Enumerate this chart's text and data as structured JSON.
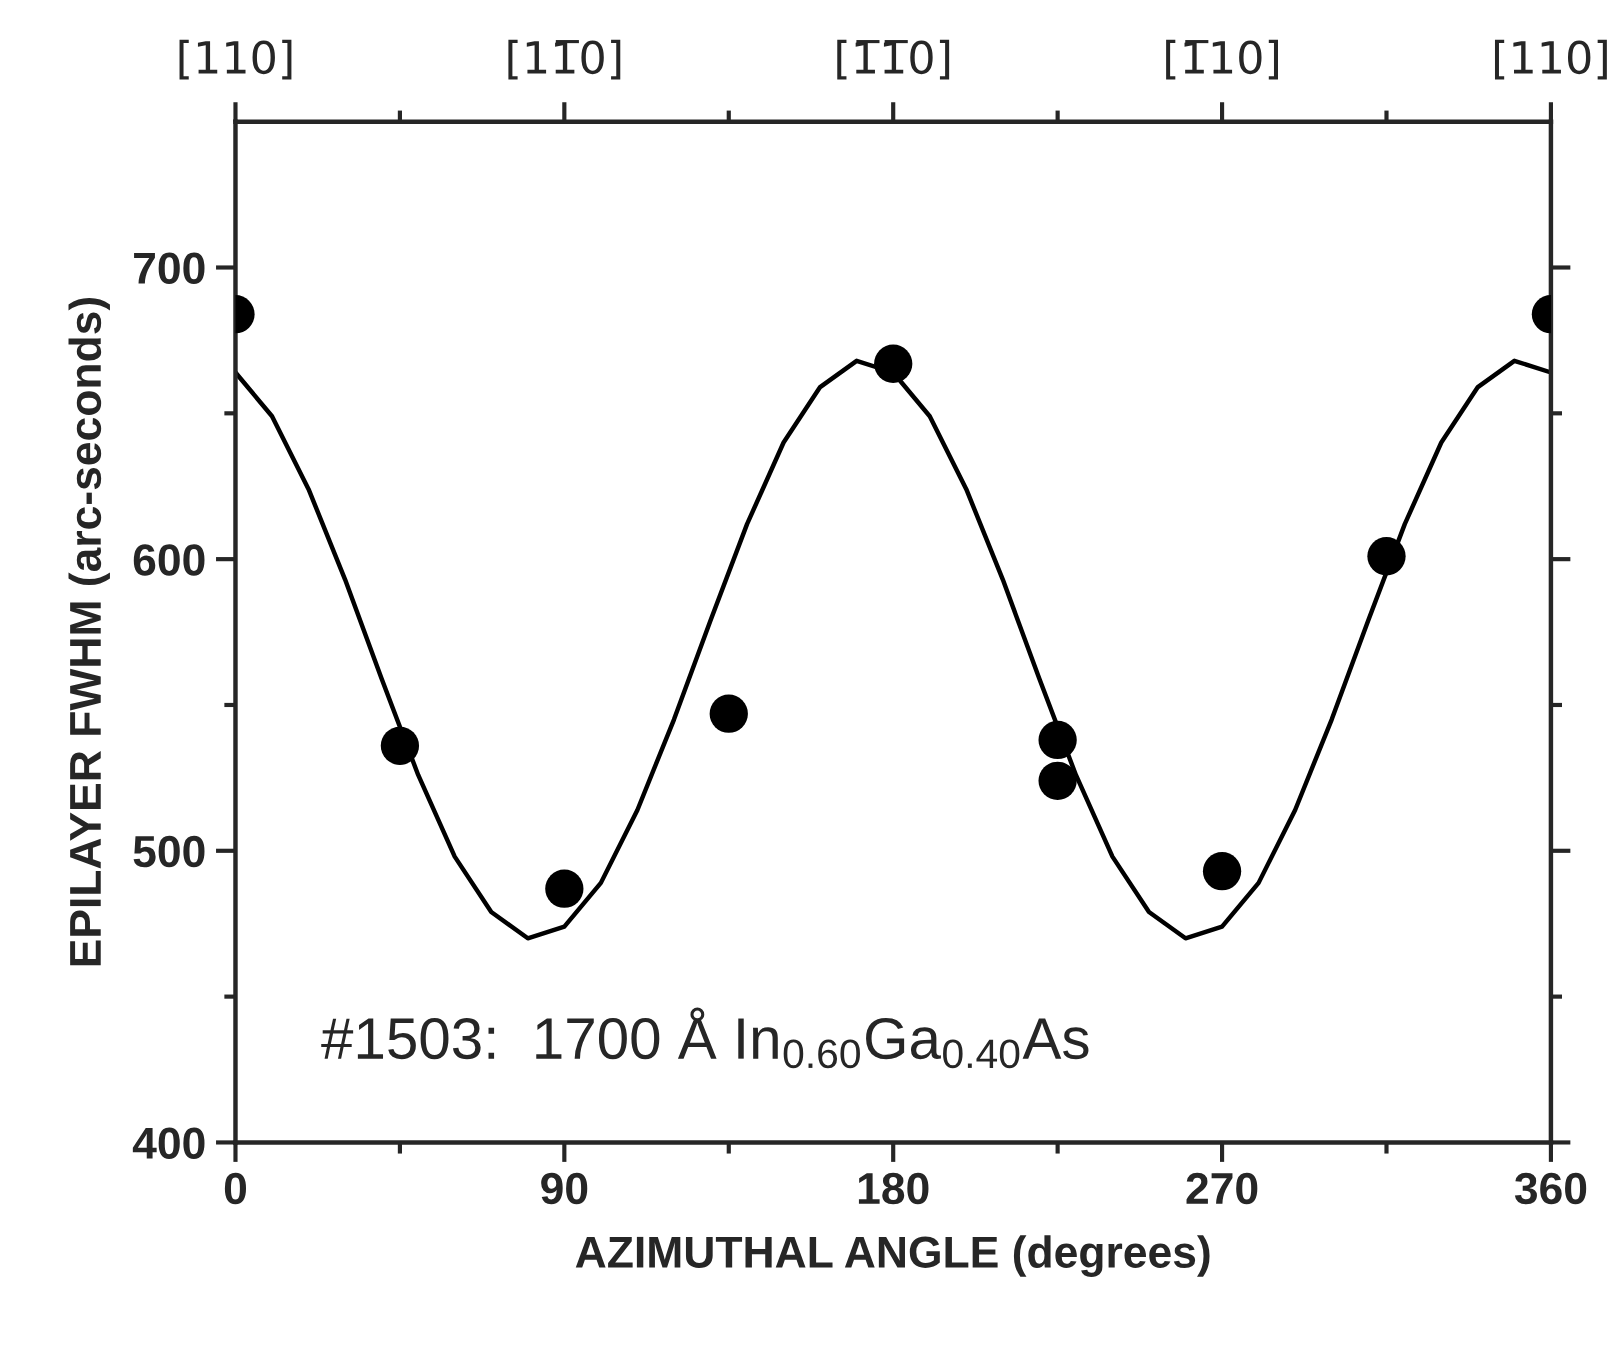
{
  "chart_data": {
    "type": "scatter",
    "xlabel": "AZIMUTHAL ANGLE (degrees)",
    "ylabel": "EPILAYER FWHM (arc-seconds)",
    "xlim": [
      0,
      360
    ],
    "xticks": [
      0,
      {
        "value": 45,
        "label": null
      },
      90,
      {
        "value": 135,
        "label": null
      },
      180,
      {
        "value": 225,
        "label": null
      },
      270,
      {
        "value": 315,
        "label": null
      },
      360
    ],
    "ylim": [
      400,
      750
    ],
    "yticks": [
      400,
      {
        "value": 450,
        "label": null
      },
      500,
      {
        "value": 550,
        "label": null
      },
      600,
      {
        "value": 650,
        "label": null
      },
      700
    ],
    "marker": "circle",
    "grid": false,
    "series": [
      {
        "color": "#000000",
        "x": [
          0,
          45,
          90,
          135,
          180,
          225,
          225,
          270,
          315,
          360
        ],
        "values": [
          684,
          536,
          487,
          547,
          667,
          538,
          524,
          493,
          601,
          684
        ]
      },
      {
        "type": "line",
        "color": "#000000",
        "line_style": "solid",
        "marker": "none",
        "x": [
          0,
          10,
          20,
          30,
          40,
          50,
          60,
          70,
          80,
          90,
          100,
          110,
          120,
          130,
          140,
          150,
          160,
          170,
          180,
          190,
          200,
          210,
          220,
          230,
          240,
          250,
          260,
          270,
          280,
          290,
          300,
          310,
          320,
          330,
          340,
          350,
          360
        ],
        "values": [
          664,
          649,
          624,
          593,
          559,
          526,
          498,
          479,
          470,
          474,
          489,
          514,
          545,
          579,
          612,
          640,
          659,
          668,
          664,
          649,
          624,
          593,
          559,
          526,
          498,
          479,
          470,
          474,
          489,
          514,
          545,
          579,
          612,
          640,
          659,
          668,
          664
        ]
      }
    ],
    "annotations": [
      "#1503:  1700 Å In$_{0.60}$Ga$_{0.40}$As",
      {
        "text": "[110]",
        "x": 0
      },
      {
        "text": "[11̅0]",
        "x": 90
      },
      {
        "text": "[1̅1̅0]",
        "x": 180
      },
      {
        "text": "[1̅10]",
        "x": 270
      },
      {
        "text": "[110]",
        "x": 360
      }
    ]
  }
}
